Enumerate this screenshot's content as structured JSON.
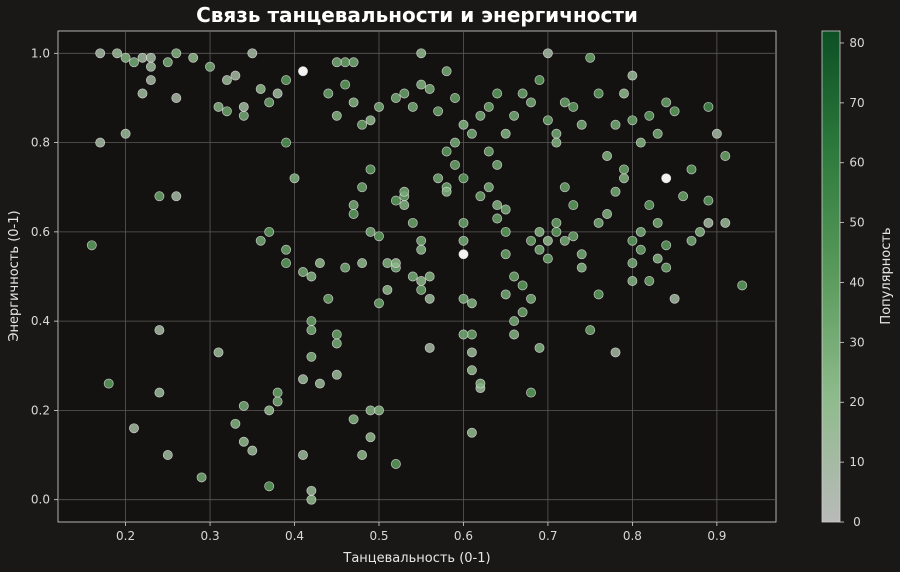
{
  "chart_data": {
    "type": "scatter",
    "title": "Связь танцевальности и энергичности",
    "xlabel": "Танцевальность (0-1)",
    "ylabel": "Энергичность (0-1)",
    "xlim": [
      0.12,
      0.97
    ],
    "ylim": [
      -0.05,
      1.05
    ],
    "xticks": [
      "0.2",
      "0.3",
      "0.4",
      "0.5",
      "0.6",
      "0.7",
      "0.8",
      "0.9"
    ],
    "yticks": [
      "0.0",
      "0.2",
      "0.4",
      "0.6",
      "0.8",
      "1.0"
    ],
    "grid": true,
    "colorbar": {
      "label": "Популярность",
      "min": 0,
      "max": 82,
      "ticks": [
        "0",
        "10",
        "20",
        "30",
        "40",
        "50",
        "60",
        "70",
        "80"
      ],
      "colors": [
        "#b9bab9",
        "#8fbb8c",
        "#5a9b5c",
        "#2e7b3d",
        "#0c4f24"
      ]
    },
    "points": [
      [
        0.17,
        1.0,
        10
      ],
      [
        0.19,
        1.0,
        15
      ],
      [
        0.2,
        0.99,
        25
      ],
      [
        0.21,
        0.98,
        30
      ],
      [
        0.22,
        0.99,
        12
      ],
      [
        0.23,
        0.99,
        10
      ],
      [
        0.23,
        0.97,
        15
      ],
      [
        0.23,
        0.94,
        10
      ],
      [
        0.22,
        0.91,
        12
      ],
      [
        0.25,
        0.98,
        30
      ],
      [
        0.26,
        1.0,
        25
      ],
      [
        0.26,
        0.9,
        8
      ],
      [
        0.28,
        0.99,
        20
      ],
      [
        0.3,
        0.97,
        30
      ],
      [
        0.31,
        0.88,
        25
      ],
      [
        0.32,
        0.94,
        15
      ],
      [
        0.33,
        0.95,
        10
      ],
      [
        0.32,
        0.87,
        35
      ],
      [
        0.34,
        0.86,
        30
      ],
      [
        0.34,
        0.88,
        12
      ],
      [
        0.35,
        1.0,
        10
      ],
      [
        0.36,
        0.92,
        20
      ],
      [
        0.37,
        0.89,
        35
      ],
      [
        0.38,
        0.91,
        12
      ],
      [
        0.39,
        0.94,
        40
      ],
      [
        0.39,
        0.8,
        45
      ],
      [
        0.17,
        0.8,
        10
      ],
      [
        0.2,
        0.82,
        15
      ],
      [
        0.16,
        0.57,
        40
      ],
      [
        0.24,
        0.68,
        35
      ],
      [
        0.26,
        0.68,
        10
      ],
      [
        0.36,
        0.58,
        30
      ],
      [
        0.37,
        0.6,
        40
      ],
      [
        0.39,
        0.56,
        35
      ],
      [
        0.39,
        0.53,
        40
      ],
      [
        0.4,
        0.72,
        25
      ],
      [
        0.41,
        0.51,
        30
      ],
      [
        0.42,
        0.5,
        25
      ],
      [
        0.43,
        0.53,
        20
      ],
      [
        0.41,
        0.96,
        0
      ],
      [
        0.42,
        0.4,
        35
      ],
      [
        0.44,
        0.45,
        35
      ],
      [
        0.43,
        0.26,
        15
      ],
      [
        0.41,
        0.27,
        15
      ],
      [
        0.42,
        0.32,
        25
      ],
      [
        0.42,
        0.38,
        30
      ],
      [
        0.45,
        0.37,
        35
      ],
      [
        0.45,
        0.35,
        30
      ],
      [
        0.45,
        0.28,
        15
      ],
      [
        0.46,
        0.52,
        30
      ],
      [
        0.47,
        0.64,
        40
      ],
      [
        0.47,
        0.66,
        30
      ],
      [
        0.48,
        0.7,
        35
      ],
      [
        0.49,
        0.74,
        40
      ],
      [
        0.48,
        0.53,
        20
      ],
      [
        0.49,
        0.6,
        30
      ],
      [
        0.5,
        0.59,
        40
      ],
      [
        0.5,
        0.44,
        35
      ],
      [
        0.51,
        0.47,
        20
      ],
      [
        0.51,
        0.53,
        25
      ],
      [
        0.52,
        0.52,
        30
      ],
      [
        0.52,
        0.53,
        20
      ],
      [
        0.52,
        0.67,
        40
      ],
      [
        0.53,
        0.68,
        35
      ],
      [
        0.53,
        0.69,
        30
      ],
      [
        0.53,
        0.66,
        25
      ],
      [
        0.54,
        0.62,
        35
      ],
      [
        0.55,
        0.58,
        30
      ],
      [
        0.55,
        0.56,
        25
      ],
      [
        0.54,
        0.5,
        30
      ],
      [
        0.55,
        0.49,
        20
      ],
      [
        0.55,
        0.47,
        35
      ],
      [
        0.56,
        0.5,
        25
      ],
      [
        0.56,
        0.45,
        15
      ],
      [
        0.56,
        0.34,
        10
      ],
      [
        0.57,
        0.72,
        30
      ],
      [
        0.58,
        0.7,
        35
      ],
      [
        0.58,
        0.69,
        25
      ],
      [
        0.58,
        0.78,
        40
      ],
      [
        0.59,
        0.8,
        30
      ],
      [
        0.59,
        0.75,
        35
      ],
      [
        0.6,
        0.72,
        40
      ],
      [
        0.6,
        0.62,
        35
      ],
      [
        0.6,
        0.58,
        30
      ],
      [
        0.6,
        0.55,
        0
      ],
      [
        0.6,
        0.45,
        30
      ],
      [
        0.61,
        0.44,
        25
      ],
      [
        0.61,
        0.37,
        35
      ],
      [
        0.6,
        0.37,
        30
      ],
      [
        0.61,
        0.33,
        15
      ],
      [
        0.61,
        0.29,
        20
      ],
      [
        0.62,
        0.25,
        15
      ],
      [
        0.61,
        0.15,
        20
      ],
      [
        0.62,
        0.26,
        25
      ],
      [
        0.62,
        0.68,
        35
      ],
      [
        0.63,
        0.7,
        30
      ],
      [
        0.63,
        0.78,
        35
      ],
      [
        0.64,
        0.75,
        30
      ],
      [
        0.64,
        0.66,
        25
      ],
      [
        0.64,
        0.63,
        35
      ],
      [
        0.65,
        0.65,
        30
      ],
      [
        0.65,
        0.6,
        40
      ],
      [
        0.65,
        0.55,
        35
      ],
      [
        0.65,
        0.46,
        30
      ],
      [
        0.66,
        0.5,
        35
      ],
      [
        0.66,
        0.4,
        30
      ],
      [
        0.66,
        0.37,
        25
      ],
      [
        0.67,
        0.48,
        40
      ],
      [
        0.67,
        0.42,
        35
      ],
      [
        0.68,
        0.45,
        30
      ],
      [
        0.68,
        0.24,
        40
      ],
      [
        0.69,
        0.34,
        25
      ],
      [
        0.68,
        0.58,
        35
      ],
      [
        0.69,
        0.56,
        30
      ],
      [
        0.69,
        0.6,
        25
      ],
      [
        0.7,
        0.58,
        20
      ],
      [
        0.7,
        0.54,
        35
      ],
      [
        0.71,
        0.6,
        40
      ],
      [
        0.71,
        0.62,
        35
      ],
      [
        0.72,
        0.58,
        30
      ],
      [
        0.72,
        0.7,
        35
      ],
      [
        0.73,
        0.66,
        40
      ],
      [
        0.73,
        0.59,
        35
      ],
      [
        0.74,
        0.55,
        30
      ],
      [
        0.74,
        0.52,
        25
      ],
      [
        0.75,
        0.38,
        35
      ],
      [
        0.76,
        0.46,
        40
      ],
      [
        0.76,
        0.62,
        30
      ],
      [
        0.77,
        0.64,
        25
      ],
      [
        0.78,
        0.69,
        30
      ],
      [
        0.78,
        0.33,
        10
      ],
      [
        0.79,
        0.72,
        25
      ],
      [
        0.79,
        0.74,
        35
      ],
      [
        0.8,
        0.58,
        40
      ],
      [
        0.8,
        0.53,
        30
      ],
      [
        0.8,
        0.49,
        25
      ],
      [
        0.81,
        0.56,
        35
      ],
      [
        0.81,
        0.6,
        30
      ],
      [
        0.82,
        0.66,
        40
      ],
      [
        0.82,
        0.49,
        35
      ],
      [
        0.83,
        0.62,
        30
      ],
      [
        0.83,
        0.54,
        25
      ],
      [
        0.84,
        0.52,
        35
      ],
      [
        0.84,
        0.57,
        40
      ],
      [
        0.84,
        0.72,
        0
      ],
      [
        0.85,
        0.45,
        10
      ],
      [
        0.86,
        0.68,
        35
      ],
      [
        0.87,
        0.74,
        40
      ],
      [
        0.87,
        0.58,
        30
      ],
      [
        0.88,
        0.6,
        25
      ],
      [
        0.89,
        0.62,
        10
      ],
      [
        0.89,
        0.67,
        40
      ],
      [
        0.91,
        0.62,
        15
      ],
      [
        0.91,
        0.77,
        35
      ],
      [
        0.93,
        0.48,
        40
      ],
      [
        0.9,
        0.82,
        10
      ],
      [
        0.89,
        0.88,
        50
      ],
      [
        0.85,
        0.87,
        40
      ],
      [
        0.84,
        0.89,
        35
      ],
      [
        0.83,
        0.82,
        30
      ],
      [
        0.82,
        0.86,
        40
      ],
      [
        0.81,
        0.8,
        25
      ],
      [
        0.8,
        0.85,
        35
      ],
      [
        0.8,
        0.95,
        15
      ],
      [
        0.79,
        0.91,
        20
      ],
      [
        0.78,
        0.84,
        30
      ],
      [
        0.77,
        0.77,
        25
      ],
      [
        0.76,
        0.91,
        40
      ],
      [
        0.75,
        0.99,
        35
      ],
      [
        0.74,
        0.84,
        30
      ],
      [
        0.73,
        0.88,
        40
      ],
      [
        0.72,
        0.89,
        35
      ],
      [
        0.71,
        0.82,
        30
      ],
      [
        0.71,
        0.8,
        25
      ],
      [
        0.7,
        0.85,
        35
      ],
      [
        0.7,
        1.0,
        10
      ],
      [
        0.69,
        0.94,
        40
      ],
      [
        0.68,
        0.89,
        30
      ],
      [
        0.67,
        0.91,
        35
      ],
      [
        0.66,
        0.86,
        30
      ],
      [
        0.65,
        0.82,
        25
      ],
      [
        0.64,
        0.91,
        40
      ],
      [
        0.63,
        0.88,
        35
      ],
      [
        0.62,
        0.86,
        30
      ],
      [
        0.61,
        0.82,
        30
      ],
      [
        0.6,
        0.84,
        25
      ],
      [
        0.59,
        0.9,
        35
      ],
      [
        0.58,
        0.96,
        30
      ],
      [
        0.57,
        0.87,
        35
      ],
      [
        0.56,
        0.92,
        30
      ],
      [
        0.55,
        0.93,
        25
      ],
      [
        0.55,
        1.0,
        20
      ],
      [
        0.54,
        0.88,
        30
      ],
      [
        0.53,
        0.91,
        35
      ],
      [
        0.52,
        0.9,
        30
      ],
      [
        0.5,
        0.88,
        30
      ],
      [
        0.49,
        0.85,
        20
      ],
      [
        0.48,
        0.84,
        35
      ],
      [
        0.47,
        0.89,
        25
      ],
      [
        0.46,
        0.93,
        40
      ],
      [
        0.46,
        0.98,
        35
      ],
      [
        0.47,
        0.98,
        30
      ],
      [
        0.45,
        0.98,
        30
      ],
      [
        0.44,
        0.91,
        35
      ],
      [
        0.45,
        0.86,
        25
      ],
      [
        0.29,
        0.05,
        30
      ],
      [
        0.34,
        0.13,
        20
      ],
      [
        0.34,
        0.21,
        30
      ],
      [
        0.33,
        0.17,
        25
      ],
      [
        0.37,
        0.2,
        20
      ],
      [
        0.38,
        0.22,
        30
      ],
      [
        0.38,
        0.24,
        35
      ],
      [
        0.37,
        0.03,
        40
      ],
      [
        0.35,
        0.11,
        15
      ],
      [
        0.31,
        0.33,
        15
      ],
      [
        0.24,
        0.38,
        10
      ],
      [
        0.24,
        0.24,
        15
      ],
      [
        0.18,
        0.26,
        40
      ],
      [
        0.21,
        0.16,
        10
      ],
      [
        0.25,
        0.1,
        12
      ],
      [
        0.41,
        0.1,
        15
      ],
      [
        0.42,
        0.0,
        20
      ],
      [
        0.42,
        0.02,
        15
      ],
      [
        0.47,
        0.18,
        25
      ],
      [
        0.48,
        0.1,
        20
      ],
      [
        0.49,
        0.2,
        25
      ],
      [
        0.5,
        0.2,
        25
      ],
      [
        0.49,
        0.14,
        20
      ],
      [
        0.52,
        0.08,
        40
      ]
    ]
  }
}
